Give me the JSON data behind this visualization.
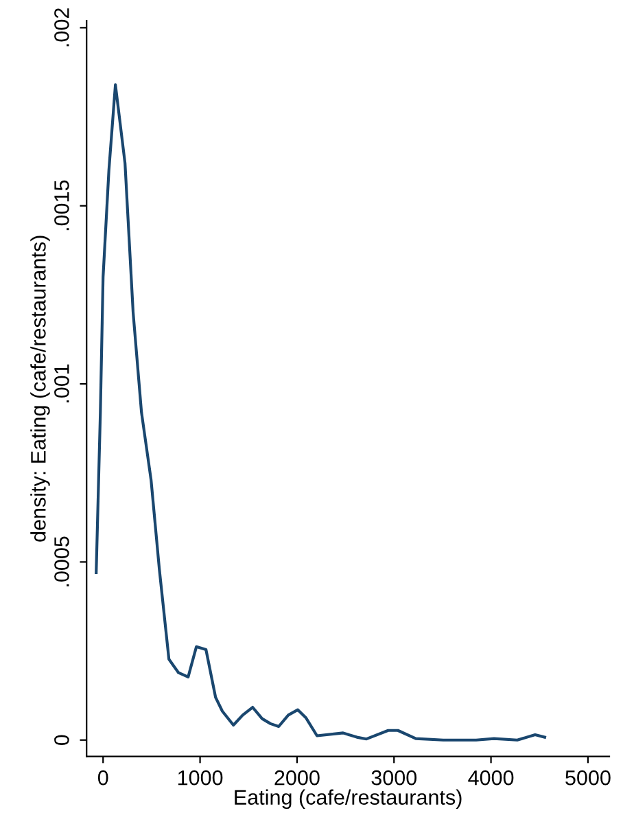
{
  "chart_data": {
    "type": "line",
    "xlabel": "Eating (cafe/restaurants)",
    "ylabel": "density: Eating (cafe/restaurants)",
    "xlim": [
      -170,
      5220
    ],
    "ylim": [
      -4.6e-05,
      0.00202
    ],
    "xticks": [
      0,
      1000,
      2000,
      3000,
      4000,
      5000
    ],
    "yticks": [
      {
        "value": 0,
        "label": "0"
      },
      {
        "value": 0.0005,
        "label": ".0005"
      },
      {
        "value": 0.001,
        "label": ".001"
      },
      {
        "value": 0.0015,
        "label": ".0015"
      },
      {
        "value": 0.002,
        "label": ".002"
      }
    ],
    "grid": false,
    "legend": false,
    "series": [
      {
        "color": "#1a476f",
        "x": [
          -71,
          -28,
          0,
          60,
          127,
          226,
          310,
          396,
          495,
          580,
          679,
          778,
          877,
          962,
          1061,
          1160,
          1230,
          1344,
          1440,
          1542,
          1640,
          1726,
          1811,
          1910,
          2008,
          2093,
          2206,
          2475,
          2617,
          2716,
          2940,
          3040,
          3225,
          3508,
          3847,
          4031,
          4271,
          4455,
          4554
        ],
        "values": [
          0.00047,
          0.00092,
          0.0013,
          0.0016,
          0.00184,
          0.00162,
          0.0012,
          0.00092,
          0.00073,
          0.00048,
          0.000227,
          0.000189,
          0.000177,
          0.000262,
          0.000254,
          0.00012,
          8.1e-05,
          4.2e-05,
          7e-05,
          9.2e-05,
          6e-05,
          4.6e-05,
          3.8e-05,
          7e-05,
          8.5e-05,
          6.2e-05,
          1.2e-05,
          2e-05,
          8e-06,
          3e-06,
          2.7e-05,
          2.7e-05,
          4e-06,
          0.0,
          0.0,
          4e-06,
          0.0,
          1.5e-05,
          8e-06
        ]
      }
    ]
  }
}
